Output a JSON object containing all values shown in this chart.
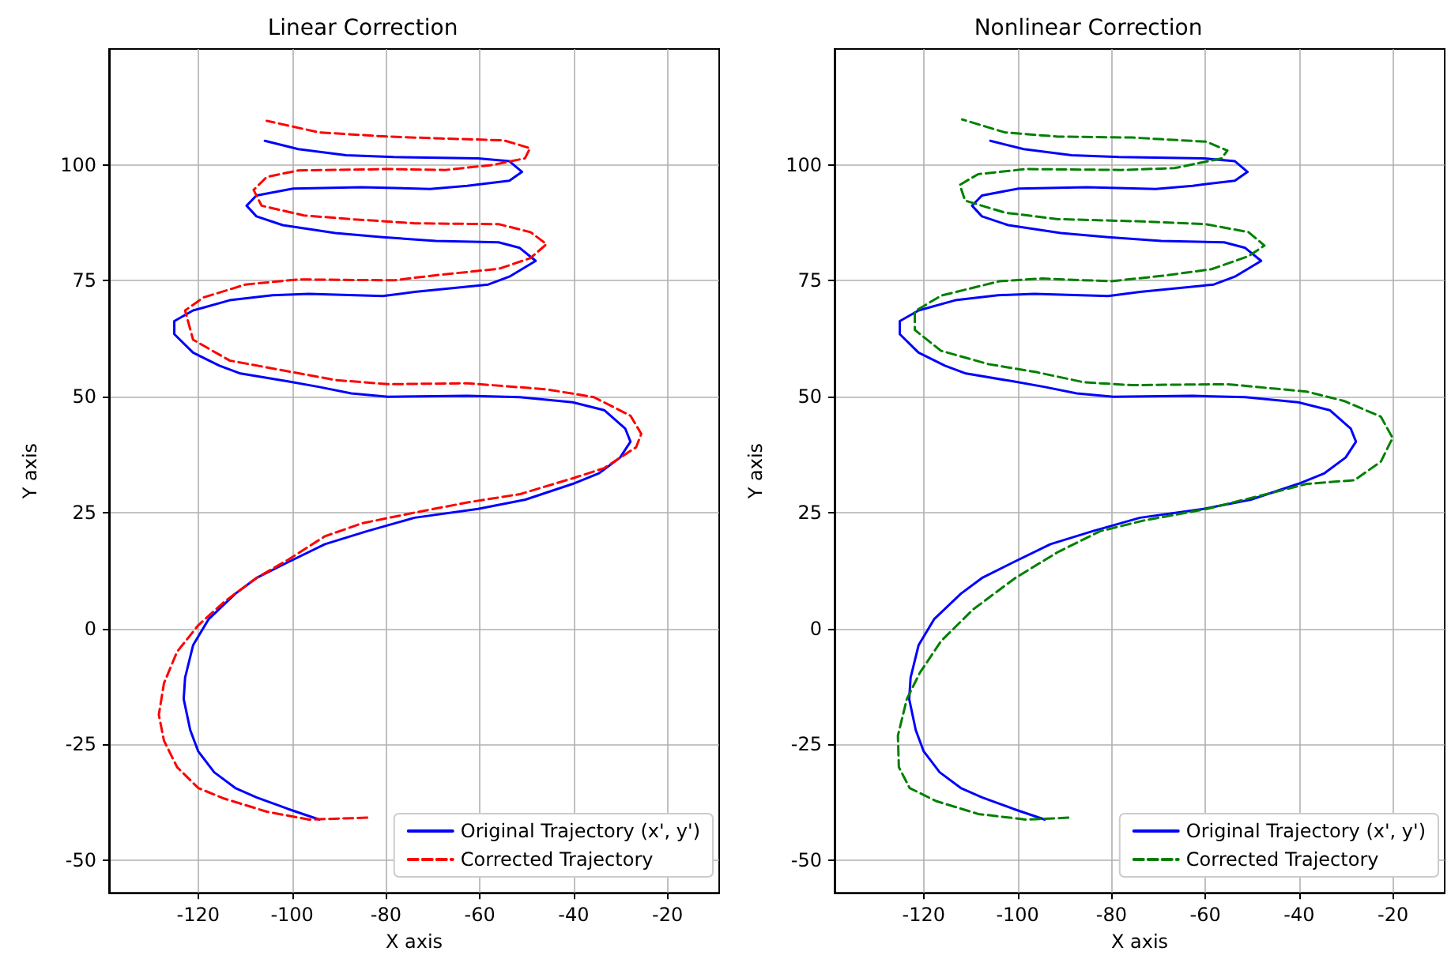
{
  "chart_data": [
    {
      "type": "line",
      "title": "Linear Correction",
      "xlabel": "X axis",
      "ylabel": "Y axis",
      "xlim": [
        -139,
        -9
      ],
      "ylim": [
        -57,
        125
      ],
      "xticks": [
        -120,
        -100,
        -80,
        -60,
        -40,
        -20
      ],
      "yticks": [
        -50,
        -25,
        0,
        25,
        50,
        75,
        100
      ],
      "grid": true,
      "legend": "bottom right",
      "marker": "none",
      "series": [
        {
          "name": "Original Trajectory (x', y')",
          "color": "#0000ff",
          "line_style": "solid",
          "x": [
            -94.2,
            -100.9,
            -107.6,
            -112.1,
            -116.6,
            -120,
            -121.7,
            -123.1,
            -122.8,
            -121.1,
            -117.8,
            -112.1,
            -107.6,
            -100.9,
            -93,
            -84,
            -73.9,
            -60.4,
            -50.3,
            -40.2,
            -34.6,
            -30.1,
            -27.9,
            -29,
            -33.5,
            -40.2,
            -51.5,
            -62.7,
            -79.6,
            -87.4,
            -94.2,
            -100.9,
            -111,
            -115.5,
            -121.1,
            -125.1,
            -125.1,
            -121.1,
            -113.3,
            -104.2,
            -96.4,
            -80.7,
            -73.9,
            -58.2,
            -53.7,
            -48.1,
            -51.5,
            -56,
            -69.4,
            -80.7,
            -90.8,
            -102,
            -107.6,
            -109.7,
            -107.6,
            -99.8,
            -85.2,
            -70.6,
            -62.7,
            -53.7,
            -51,
            -53.7,
            -60.4,
            -78.4,
            -88.5,
            -98.7,
            -105.8
          ],
          "values": [
            -41.2,
            -38.9,
            -36.4,
            -34.4,
            -31,
            -26.5,
            -21.9,
            -15.2,
            -10.6,
            -3.6,
            2,
            7.5,
            10.9,
            14.3,
            18.2,
            21,
            23.9,
            25.8,
            27.8,
            31.2,
            33.5,
            36.9,
            40.3,
            43.1,
            47.1,
            48.8,
            49.9,
            50.2,
            50,
            50.7,
            52.1,
            53.3,
            55,
            56.7,
            59.5,
            63.5,
            66.3,
            68.6,
            70.8,
            71.9,
            72.2,
            71.7,
            72.6,
            74.2,
            75.9,
            79.3,
            82.1,
            83.3,
            83.6,
            84.4,
            85.3,
            87,
            88.9,
            91.2,
            93.4,
            94.9,
            95.2,
            94.8,
            95.5,
            96.6,
            98.5,
            100.8,
            101.4,
            101.7,
            102.1,
            103.4,
            105.2
          ]
        },
        {
          "name": "Corrected Trajectory",
          "color": "#ff0000",
          "line_style": "dashed",
          "x": [
            -84,
            -96.4,
            -105.4,
            -114.4,
            -120,
            -124.5,
            -127.3,
            -128.4,
            -127.3,
            -124.5,
            -120,
            -114.4,
            -107.6,
            -100.9,
            -93,
            -85.1,
            -73.9,
            -62.6,
            -51.4,
            -40.2,
            -33.5,
            -26.7,
            -25.6,
            -27.9,
            -35.7,
            -45.8,
            -62.7,
            -79.6,
            -90.8,
            -103.1,
            -113.3,
            -121.1,
            -122.8,
            -118.9,
            -109.9,
            -98.7,
            -78.4,
            -69.4,
            -55.9,
            -49.2,
            -45.8,
            -49.2,
            -55.9,
            -73.9,
            -87.4,
            -97.5,
            -106.5,
            -108.2,
            -105.4,
            -98.7,
            -79.6,
            -67.4,
            -57.2,
            -50.4,
            -49.3,
            -54.9,
            -68.3,
            -79.6,
            -94.2,
            -105.4
          ],
          "values": [
            -40.8,
            -41.2,
            -39.5,
            -36.7,
            -34.4,
            -29.9,
            -24.2,
            -18.6,
            -11.8,
            -5,
            0.7,
            5.8,
            10.9,
            14.8,
            19.9,
            22.7,
            25,
            27.2,
            29,
            32.4,
            34.6,
            39.1,
            42,
            45.9,
            49.9,
            51.6,
            52.9,
            52.7,
            53.6,
            55.9,
            57.8,
            62.3,
            68.6,
            71.4,
            74.2,
            75.3,
            75.1,
            76.2,
            77.6,
            79.9,
            82.9,
            85.5,
            87.2,
            87.4,
            88.3,
            89.1,
            91.2,
            94.6,
            97.4,
            98.8,
            99.1,
            98.9,
            100,
            101.4,
            103.6,
            105.3,
            105.7,
            106.1,
            107,
            109.5
          ]
        }
      ]
    },
    {
      "type": "line",
      "title": "Nonlinear Correction",
      "xlabel": "X axis",
      "ylabel": "Y axis",
      "xlim": [
        -139,
        -9
      ],
      "ylim": [
        -57,
        125
      ],
      "xticks": [
        -120,
        -100,
        -80,
        -60,
        -40,
        -20
      ],
      "yticks": [
        -50,
        -25,
        0,
        25,
        50,
        75,
        100
      ],
      "grid": true,
      "legend": "bottom right",
      "marker": "none",
      "series": [
        {
          "name": "Original Trajectory (x', y')",
          "color": "#0000ff",
          "line_style": "solid",
          "x": [
            -94.2,
            -100.9,
            -107.6,
            -112.1,
            -116.6,
            -120,
            -121.7,
            -123.1,
            -122.8,
            -121.1,
            -117.8,
            -112.1,
            -107.6,
            -100.9,
            -93,
            -84,
            -73.9,
            -60.4,
            -50.3,
            -40.2,
            -34.6,
            -30.1,
            -27.9,
            -29,
            -33.5,
            -40.2,
            -51.5,
            -62.7,
            -79.6,
            -87.4,
            -94.2,
            -100.9,
            -111,
            -115.5,
            -121.1,
            -125.1,
            -125.1,
            -121.1,
            -113.3,
            -104.2,
            -96.4,
            -80.7,
            -73.9,
            -58.2,
            -53.7,
            -48.1,
            -51.5,
            -56,
            -69.4,
            -80.7,
            -90.8,
            -102,
            -107.6,
            -109.7,
            -107.6,
            -99.8,
            -85.2,
            -70.6,
            -62.7,
            -53.7,
            -51,
            -53.7,
            -60.4,
            -78.4,
            -88.5,
            -98.7,
            -105.8
          ],
          "values": [
            -41.2,
            -38.9,
            -36.4,
            -34.4,
            -31,
            -26.5,
            -21.9,
            -15.2,
            -10.6,
            -3.6,
            2,
            7.5,
            10.9,
            14.3,
            18.2,
            21,
            23.9,
            25.8,
            27.8,
            31.2,
            33.5,
            36.9,
            40.3,
            43.1,
            47.1,
            48.8,
            49.9,
            50.2,
            50,
            50.7,
            52.1,
            53.3,
            55,
            56.7,
            59.5,
            63.5,
            66.3,
            68.6,
            70.8,
            71.9,
            72.2,
            71.7,
            72.6,
            74.2,
            75.9,
            79.3,
            82.1,
            83.3,
            83.6,
            84.4,
            85.3,
            87,
            88.9,
            91.2,
            93.4,
            94.9,
            95.2,
            94.8,
            95.5,
            96.6,
            98.5,
            100.8,
            101.4,
            101.7,
            102.1,
            103.4,
            105.2
          ]
        },
        {
          "name": "Corrected Trajectory",
          "color": "#008000",
          "line_style": "dashed",
          "x": [
            -89.2,
            -98.2,
            -108.4,
            -117.4,
            -123,
            -125.3,
            -125.5,
            -123.6,
            -120.8,
            -116.3,
            -109.5,
            -100.5,
            -91.4,
            -82.4,
            -73.1,
            -59.7,
            -46.1,
            -38.4,
            -28.2,
            -22.6,
            -20.1,
            -22.6,
            -30.5,
            -38.4,
            -55.3,
            -75.6,
            -85.8,
            -96,
            -106.1,
            -116.3,
            -121.9,
            -121.9,
            -116.3,
            -103.9,
            -94.8,
            -80.2,
            -68.9,
            -58.7,
            -50.8,
            -47.4,
            -50.8,
            -59.8,
            -73.4,
            -91.4,
            -102.7,
            -111.2,
            -112.3,
            -108.4,
            -98.2,
            -77.9,
            -66.6,
            -56.5,
            -55.3,
            -59.8,
            -75.6,
            -91.4,
            -102.7,
            -111.8
          ],
          "values": [
            -40.8,
            -41.2,
            -40,
            -37.2,
            -34.4,
            -29.9,
            -23.1,
            -15.2,
            -9.5,
            -2.7,
            4.1,
            10.9,
            16.5,
            21,
            23.3,
            25.8,
            29.2,
            31.2,
            32,
            36,
            41.1,
            45.7,
            49.1,
            51.1,
            52.7,
            52.5,
            53.1,
            55.3,
            57,
            59.9,
            64.4,
            68.4,
            71.8,
            74.9,
            75.5,
            74.9,
            76.1,
            77.5,
            80.3,
            82.6,
            85.5,
            87.2,
            87.8,
            88.3,
            89.7,
            92.3,
            95.7,
            98,
            99.1,
            98.9,
            99.3,
            101.4,
            103.1,
            105,
            105.9,
            106.1,
            107,
            109.8
          ]
        }
      ]
    }
  ]
}
